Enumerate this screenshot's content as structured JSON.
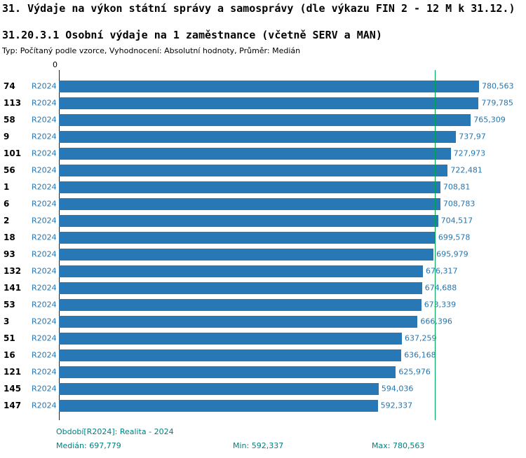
{
  "header": {
    "title": "31. Výdaje na výkon státní správy a samosprávy (dle výkazu FIN 2 - 12 M k 31.12.)",
    "subtitle": "31.20.3.1 Osobní výdaje na 1 zaměstnance (včetně SERV a MAN)",
    "meta": "Typ: Počítaný podle vzorce, Vyhodnocení: Absolutní hodnoty, Průměr: Medián"
  },
  "chart_data": {
    "type": "bar",
    "orientation": "horizontal",
    "axis_zero_label": "0",
    "x_max": 780.563,
    "median": {
      "value": 697.779,
      "label": "697,779"
    },
    "rows": [
      {
        "id": "74",
        "period": "R2024",
        "value": 780.563,
        "label": "780,563"
      },
      {
        "id": "113",
        "period": "R2024",
        "value": 779.785,
        "label": "779,785"
      },
      {
        "id": "58",
        "period": "R2024",
        "value": 765.309,
        "label": "765,309"
      },
      {
        "id": "9",
        "period": "R2024",
        "value": 737.97,
        "label": "737,97"
      },
      {
        "id": "101",
        "period": "R2024",
        "value": 727.973,
        "label": "727,973"
      },
      {
        "id": "56",
        "period": "R2024",
        "value": 722.481,
        "label": "722,481"
      },
      {
        "id": "1",
        "period": "R2024",
        "value": 708.81,
        "label": "708,81"
      },
      {
        "id": "6",
        "period": "R2024",
        "value": 708.783,
        "label": "708,783"
      },
      {
        "id": "2",
        "period": "R2024",
        "value": 704.517,
        "label": "704,517"
      },
      {
        "id": "18",
        "period": "R2024",
        "value": 699.578,
        "label": "699,578"
      },
      {
        "id": "93",
        "period": "R2024",
        "value": 695.979,
        "label": "695,979"
      },
      {
        "id": "132",
        "period": "R2024",
        "value": 676.317,
        "label": "676,317"
      },
      {
        "id": "141",
        "period": "R2024",
        "value": 674.688,
        "label": "674,688"
      },
      {
        "id": "53",
        "period": "R2024",
        "value": 673.339,
        "label": "673,339"
      },
      {
        "id": "3",
        "period": "R2024",
        "value": 666.396,
        "label": "666,396"
      },
      {
        "id": "51",
        "period": "R2024",
        "value": 637.259,
        "label": "637,259"
      },
      {
        "id": "16",
        "period": "R2024",
        "value": 636.168,
        "label": "636,168"
      },
      {
        "id": "121",
        "period": "R2024",
        "value": 625.976,
        "label": "625,976"
      },
      {
        "id": "145",
        "period": "R2024",
        "value": 594.036,
        "label": "594,036"
      },
      {
        "id": "147",
        "period": "R2024",
        "value": 592.337,
        "label": "592,337"
      }
    ]
  },
  "footer": {
    "period_line": "Období[R2024]: Realita - 2024",
    "median": "Medián: 697,779",
    "min": "Min: 592,337",
    "max": "Max: 780,563"
  },
  "colors": {
    "bar": "#2878b5",
    "value_label": "#1f77b4",
    "period_label": "#1f77b4",
    "median_line": "#00a651",
    "footer_text": "#008080",
    "axis_line": "#222222",
    "text": "#000000"
  }
}
